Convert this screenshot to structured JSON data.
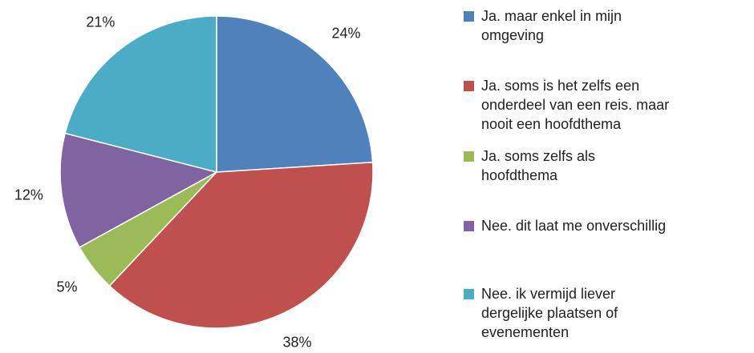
{
  "chart_data": {
    "type": "pie",
    "categories": [
      "Ja. maar enkel in mijn omgeving",
      "Ja. soms is het zelfs een onderdeel van een reis. maar nooit een hoofdthema",
      "Ja. soms zelfs als hoofdthema",
      "Nee. dit laat me onverschillig",
      "Nee. ik vermijd liever dergelijke plaatsen of evenementen"
    ],
    "values": [
      24,
      38,
      5,
      12,
      21
    ],
    "value_labels": [
      "24%",
      "38%",
      "5%",
      "12%",
      "21%"
    ],
    "colors": [
      "#4f81bd",
      "#c0504d",
      "#9bbb59",
      "#8064a2",
      "#4bacc6"
    ],
    "legend": "right"
  }
}
